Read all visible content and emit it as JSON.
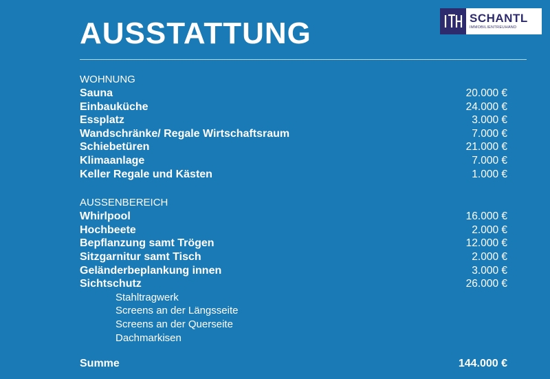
{
  "title": "AUSSTATTUNG",
  "logo": {
    "mark": "ITH",
    "name": "SCHANTL",
    "subtitle": "IMMOBILIENTREUHAND"
  },
  "sections": [
    {
      "heading": "WOHNUNG",
      "items": [
        {
          "label": "Sauna",
          "price": "20.000 €"
        },
        {
          "label": "Einbauküche",
          "price": "24.000 €"
        },
        {
          "label": "Essplatz",
          "price": "3.000 €"
        },
        {
          "label": "Wandschränke/ Regale Wirtschaftsraum",
          "price": "7.000 €"
        },
        {
          "label": "Schiebetüren",
          "price": "21.000 €"
        },
        {
          "label": "Klimaanlage",
          "price": "7.000 €"
        },
        {
          "label": "Keller Regale und Kästen",
          "price": "1.000 €"
        }
      ]
    },
    {
      "heading": "AUSSENBEREICH",
      "items": [
        {
          "label": "Whirlpool",
          "price": "16.000 €"
        },
        {
          "label": "Hochbeete",
          "price": "2.000 €"
        },
        {
          "label": "Bepflanzung samt Trögen",
          "price": "12.000 €"
        },
        {
          "label": "Sitzgarnitur samt Tisch",
          "price": "2.000 €"
        },
        {
          "label": "Geländerbeplankung innen",
          "price": "3.000 €"
        },
        {
          "label": "Sichtschutz",
          "price": "26.000 €"
        }
      ],
      "sub_items": [
        "Stahltragwerk",
        "Screens an der Längsseite",
        "Screens an der Querseite",
        "Dachmarkisen"
      ]
    }
  ],
  "total": {
    "label": "Summe",
    "price": "144.000 €"
  }
}
